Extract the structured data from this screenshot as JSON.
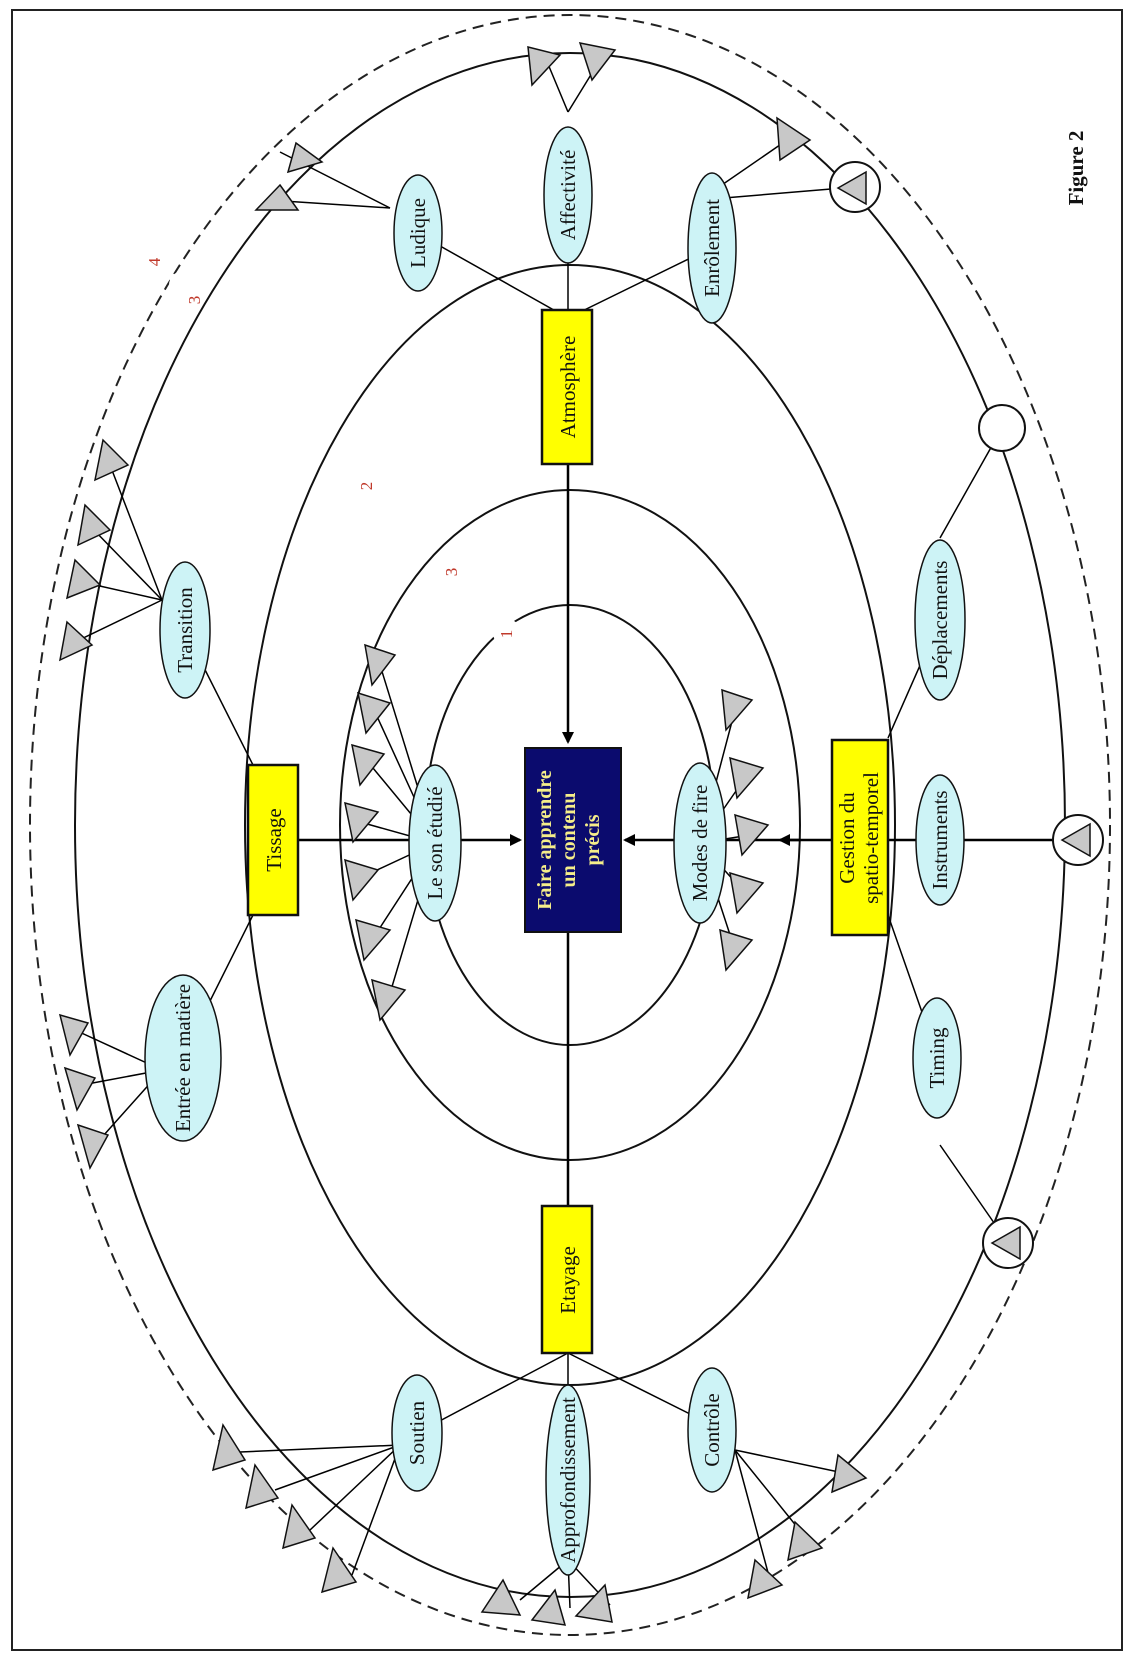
{
  "figure_label": "Figure 2",
  "center": {
    "lines": [
      "Faire apprendre",
      "un contenu",
      "précis"
    ],
    "fill_color": "#0b0b6e",
    "text_color": "#f5ee8a"
  },
  "main_categories": [
    {
      "id": "atmosphere",
      "label": "Atmosphère"
    },
    {
      "id": "tissage",
      "label": "Tissage"
    },
    {
      "id": "etayage",
      "label": "Etayage"
    },
    {
      "id": "gestion",
      "lines": [
        "Gestion du",
        "spatio-temporel"
      ]
    }
  ],
  "subcategories": {
    "atmosphere": [
      "Ludique",
      "Affectivité",
      "Enrôlement"
    ],
    "tissage": [
      "Transition",
      "Entrée en matière"
    ],
    "etayage": [
      "Soutien",
      "Approfondissement",
      "Contrôle"
    ],
    "gestion": [
      "Déplacements",
      "Instruments",
      "Timing"
    ],
    "inner": [
      "Le son étudié",
      "Modes de fire"
    ]
  },
  "level_numbers": [
    "1",
    "2",
    "3",
    "3",
    "4"
  ],
  "colors": {
    "category_fill": "#ffff00",
    "subcategory_fill": "#cdf3f6",
    "triangle_fill": "#c8c8c8",
    "number_color": "#c0392b"
  }
}
